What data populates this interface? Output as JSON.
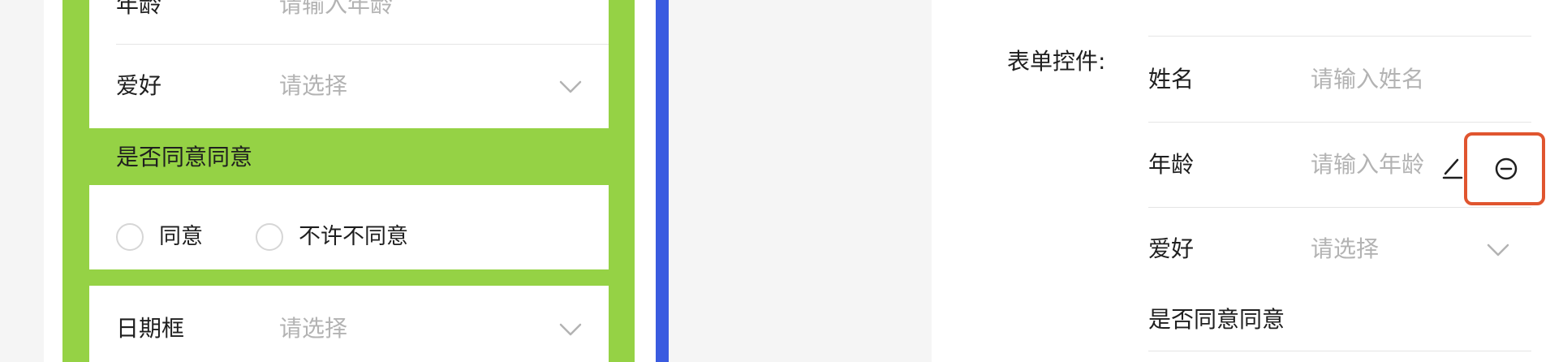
{
  "preview": {
    "fields": [
      {
        "label": "年龄",
        "placeholder": "请输入年龄"
      },
      {
        "label": "爱好",
        "placeholder": "请选择"
      }
    ],
    "consent_section": {
      "title": "是否同意同意",
      "options": [
        "同意",
        "不许不同意"
      ]
    },
    "date_field": {
      "label": "日期框",
      "placeholder": "请选择"
    }
  },
  "editor": {
    "form_controls_label": "表单控件:",
    "fields": [
      {
        "label": "姓名",
        "placeholder": "请输入姓名"
      },
      {
        "label": "年龄",
        "placeholder": "请输入年龄"
      },
      {
        "label": "爱好",
        "placeholder": "请选择"
      }
    ],
    "consent_title": "是否同意同意"
  },
  "colors": {
    "preview_green": "#95d245",
    "divider_blue": "#3a5be0",
    "highlight_red": "#e0552f"
  },
  "icons": [
    "chevron-down-icon",
    "edit-pencil-icon",
    "remove-circle-icon"
  ]
}
